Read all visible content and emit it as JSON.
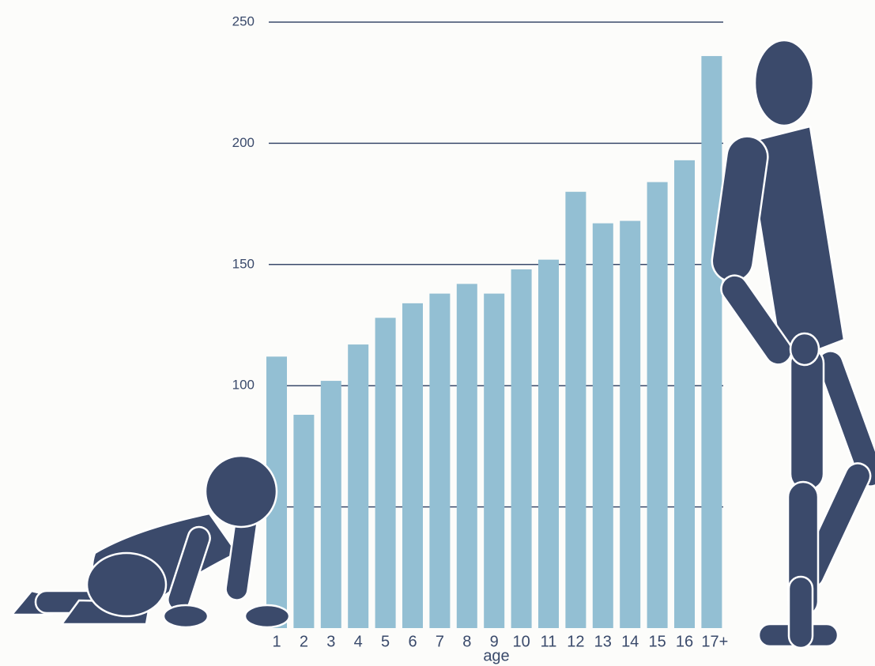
{
  "chart_data": {
    "type": "bar",
    "x_label": "age",
    "categories": [
      "1",
      "2",
      "3",
      "4",
      "5",
      "6",
      "7",
      "8",
      "9",
      "10",
      "11",
      "12",
      "13",
      "14",
      "15",
      "16",
      "17+"
    ],
    "values": [
      112,
      88,
      102,
      117,
      128,
      134,
      138,
      142,
      138,
      148,
      152,
      180,
      167,
      168,
      184,
      193,
      236
    ],
    "color": "#93bfd3",
    "ylim": [
      0,
      250
    ],
    "yticks": [
      50,
      100,
      150,
      200,
      250
    ],
    "grid": true
  }
}
